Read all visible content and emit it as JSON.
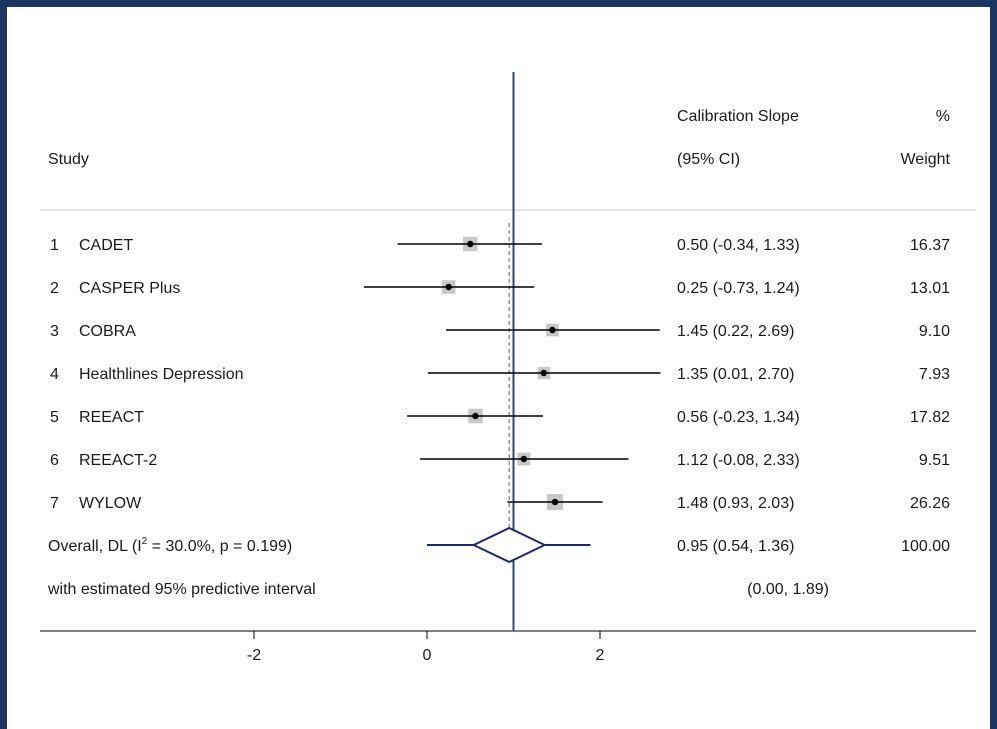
{
  "chart_data": {
    "type": "forest",
    "headers": {
      "study": "Study",
      "estimate_line1": "Calibration Slope",
      "estimate_line2": "(95% CI)",
      "weight_line1": "%",
      "weight_line2": "Weight"
    },
    "studies": [
      {
        "num": "1",
        "name": "CADET",
        "est": 0.5,
        "lo": -0.34,
        "hi": 1.33,
        "ci_text": "0.50 (-0.34, 1.33)",
        "weight": "16.37"
      },
      {
        "num": "2",
        "name": "CASPER Plus",
        "est": 0.25,
        "lo": -0.73,
        "hi": 1.24,
        "ci_text": "0.25 (-0.73, 1.24)",
        "weight": "13.01"
      },
      {
        "num": "3",
        "name": "COBRA",
        "est": 1.45,
        "lo": 0.22,
        "hi": 2.69,
        "ci_text": "1.45 (0.22, 2.69)",
        "weight": "9.10"
      },
      {
        "num": "4",
        "name": "Healthlines Depression",
        "est": 1.35,
        "lo": 0.01,
        "hi": 2.7,
        "ci_text": "1.35 (0.01, 2.70)",
        "weight": "7.93"
      },
      {
        "num": "5",
        "name": "REEACT",
        "est": 0.56,
        "lo": -0.23,
        "hi": 1.34,
        "ci_text": "0.56 (-0.23, 1.34)",
        "weight": "17.82"
      },
      {
        "num": "6",
        "name": "REEACT-2",
        "est": 1.12,
        "lo": -0.08,
        "hi": 2.33,
        "ci_text": "1.12 (-0.08, 2.33)",
        "weight": "9.51"
      },
      {
        "num": "7",
        "name": "WYLOW",
        "est": 1.48,
        "lo": 0.93,
        "hi": 2.03,
        "ci_text": "1.48 (0.93, 2.03)",
        "weight": "26.26"
      }
    ],
    "overall": {
      "label_pre": "Overall, DL (I",
      "label_sup": "2",
      "label_post": " = 30.0%, p = 0.199)",
      "est": 0.95,
      "lo": 0.54,
      "hi": 1.36,
      "pi_lo": 0.0,
      "pi_hi": 1.89,
      "ci_text": "0.95 (0.54, 1.36)",
      "weight": "100.00"
    },
    "predictive": {
      "label": "with estimated 95% predictive interval",
      "ci_text": "(0.00, 1.89)"
    },
    "x_ticks": [
      -2,
      0,
      2
    ],
    "x_tick_labels": [
      "-2",
      "0",
      "2"
    ],
    "reference_line": 1,
    "overall_dashed_line": 0.95,
    "xlim": [
      -3.83,
      2.69
    ],
    "colors": {
      "reference_line": "#2b4a7a",
      "diamond": "#1f2a6e",
      "weight_box": "#c8c8c8",
      "ci_line": "#000000",
      "frame": "#1a3560",
      "divider": "#c8c8c8"
    }
  }
}
